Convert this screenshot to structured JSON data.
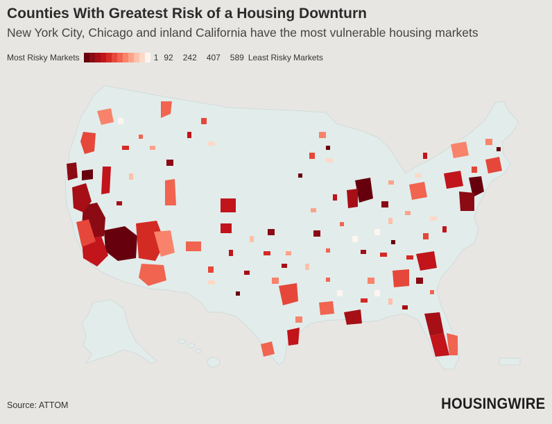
{
  "title": "Counties With Greatest Risk of a Housing Downturn",
  "subtitle": "New York City, Chicago and inland California have the most vulnerable housing markets",
  "legend": {
    "low_label": "Most Risky Markets",
    "high_label": "Least Risky Markets",
    "ticks": [
      "1",
      "92",
      "242",
      "407",
      "589"
    ],
    "colors": [
      "#67000d",
      "#8b0a14",
      "#a50f15",
      "#c1141b",
      "#d42a24",
      "#e5473a",
      "#f06450",
      "#f8836a",
      "#fba38a",
      "#fcc1a8",
      "#fdd9c7",
      "#fff5f0"
    ]
  },
  "source": "Source: ATTOM",
  "brand": "HOUSINGWIRE",
  "colors": {
    "background": "#e8e6e3",
    "land": "#e2eceb",
    "highest_risk": "#67000d",
    "lowest_risk": "#fff5f0"
  }
}
